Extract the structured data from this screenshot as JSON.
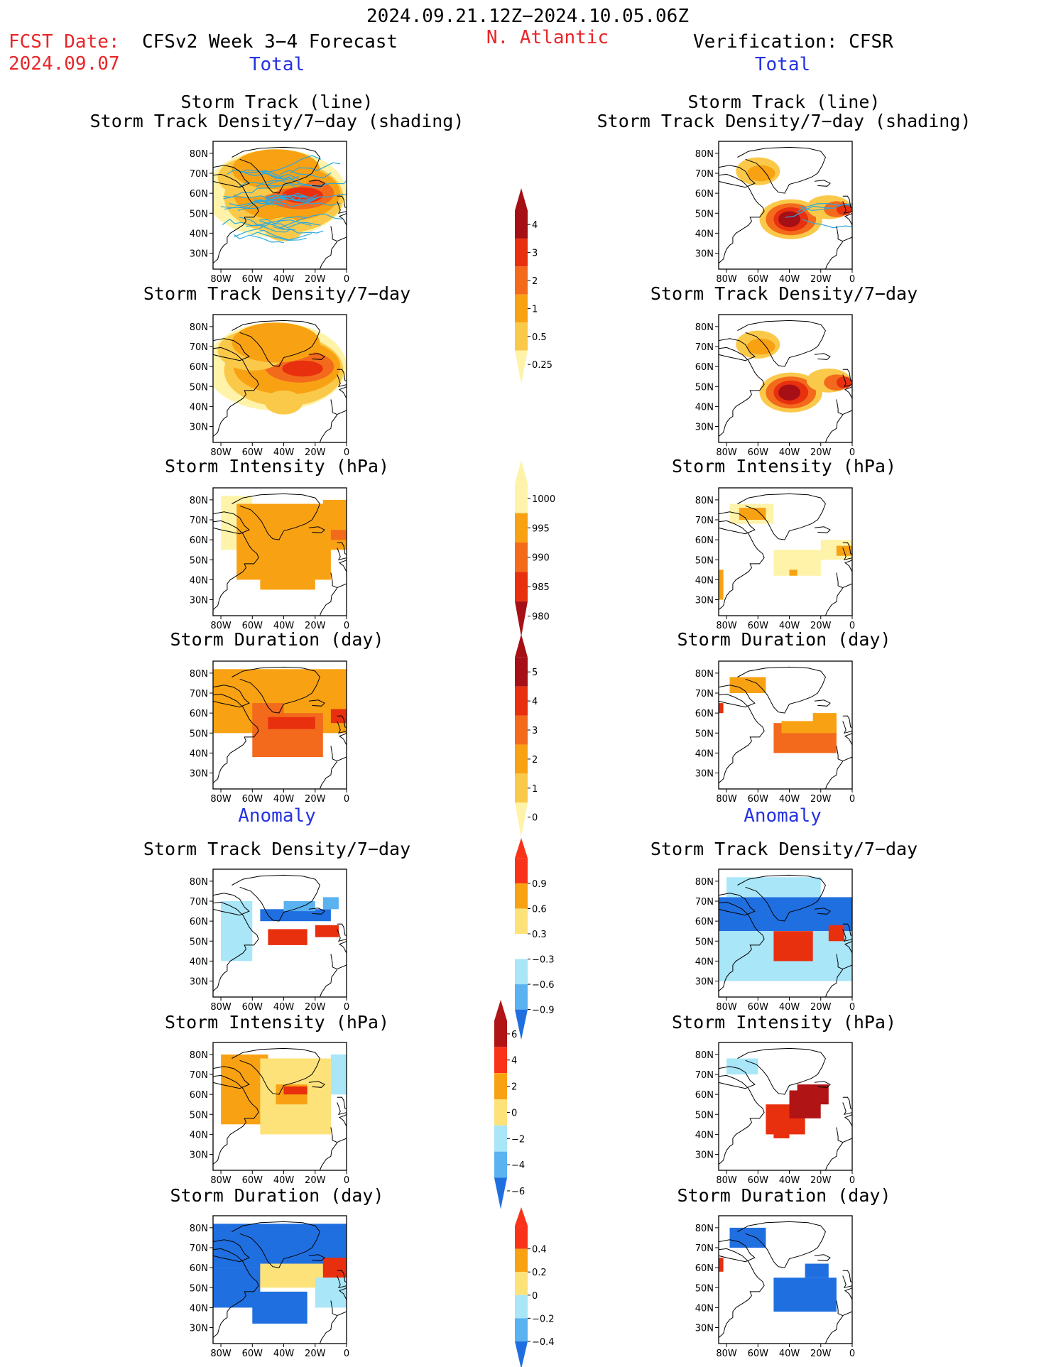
{
  "header": {
    "period": "2024.09.21.12Z−2024.10.05.06Z",
    "fcst_label": "FCST Date:",
    "fcst_date": "2024.09.07",
    "model": "CFSv2 Week 3−4 Forecast",
    "region": "N. Atlantic",
    "verification": "Verification: CFSR",
    "total_left": "Total",
    "total_right": "Total",
    "anomaly_left": "Anomaly",
    "anomaly_right": "Anomaly"
  },
  "axes": {
    "lat_ticks": [
      "80N",
      "70N",
      "60N",
      "50N",
      "40N",
      "30N"
    ],
    "lon_ticks": [
      "80W",
      "60W",
      "40W",
      "20W",
      "0"
    ]
  },
  "titles": {
    "track_line": "Storm Track (line)",
    "track_density_shading": "Storm Track Density/7−day (shading)",
    "track_density": "Storm Track Density/7−day",
    "intensity": "Storm Intensity (hPa)",
    "duration": "Storm Duration (day)"
  },
  "colorbars": [
    {
      "id": "density",
      "labels": [
        "4",
        "3",
        "2",
        "1",
        "0.5",
        "0.25"
      ],
      "colors": [
        "#a50f15",
        "#e8300f",
        "#f36a1c",
        "#f8a213",
        "#fbc94a",
        "#fef3a8"
      ]
    },
    {
      "id": "intensity",
      "labels": [
        "1000",
        "995",
        "990",
        "985",
        "980"
      ],
      "colors": [
        "#fef3a8",
        "#f8a213",
        "#f36a1c",
        "#e8300f",
        "#a50f15"
      ]
    },
    {
      "id": "duration",
      "labels": [
        "5",
        "4",
        "3",
        "2",
        "1",
        "0"
      ],
      "colors": [
        "#a50f15",
        "#e8300f",
        "#f36a1c",
        "#f8a213",
        "#fbc94a",
        "#fef3a8"
      ]
    },
    {
      "id": "density_anom",
      "labels": [
        "0.9",
        "0.6",
        "0.3",
        "−0.3",
        "−0.6",
        "−0.9"
      ],
      "colors": [
        "#f9331a",
        "#f8a213",
        "#fde27a",
        "#ffffff",
        "#a8e6f8",
        "#5ab2f0",
        "#1f6fe0"
      ]
    },
    {
      "id": "intensity_anom",
      "labels": [
        "6",
        "4",
        "2",
        "0",
        "−2",
        "−4",
        "−6"
      ],
      "colors": [
        "#b01414",
        "#f9331a",
        "#f8a213",
        "#fde27a",
        "#a8e6f8",
        "#5ab2f0",
        "#1f6fe0"
      ]
    },
    {
      "id": "duration_anom",
      "labels": [
        "0.4",
        "0.2",
        "0",
        "−0.2",
        "−0.4"
      ],
      "colors": [
        "#f9331a",
        "#f8a213",
        "#fde27a",
        "#a8e6f8",
        "#5ab2f0",
        "#1f6fe0"
      ]
    }
  ],
  "palette": {
    "pale_yellow": "#fef3a8",
    "light_yellow": "#fbc94a",
    "orange": "#f8a213",
    "dark_orange": "#f36a1c",
    "red": "#e8300f",
    "dark_red": "#a50f15",
    "light_blue": "#a8e6f8",
    "blue": "#5ab2f0",
    "dark_blue": "#1f6fe0",
    "track_line": "#2aa8e0"
  }
}
